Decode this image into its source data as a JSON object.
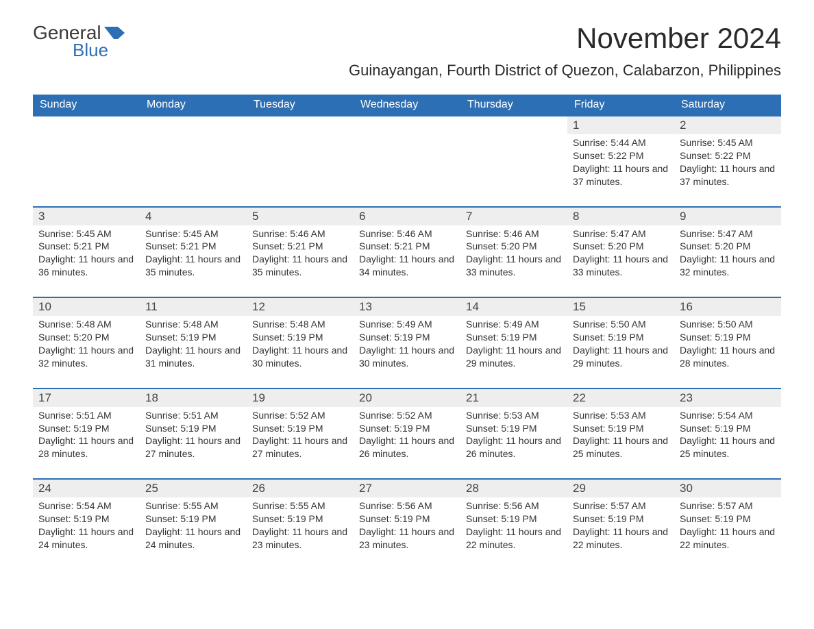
{
  "logo": {
    "text1": "General",
    "text2": "Blue",
    "flag_color": "#2d6fb5"
  },
  "header": {
    "month_title": "November 2024",
    "location": "Guinayangan, Fourth District of Quezon, Calabarzon, Philippines"
  },
  "colors": {
    "header_bg": "#2d6fb5",
    "header_text": "#ffffff",
    "daynum_bg": "#eeeeee",
    "border": "#2d6fb5",
    "text": "#333333",
    "page_bg": "#ffffff"
  },
  "typography": {
    "month_title_fontsize": 42,
    "location_fontsize": 22,
    "dayhead_fontsize": 16,
    "daynum_fontsize": 17,
    "info_fontsize": 14
  },
  "day_names": [
    "Sunday",
    "Monday",
    "Tuesday",
    "Wednesday",
    "Thursday",
    "Friday",
    "Saturday"
  ],
  "labels": {
    "sunrise": "Sunrise: ",
    "sunset": "Sunset: ",
    "daylight": "Daylight: "
  },
  "weeks": [
    [
      null,
      null,
      null,
      null,
      null,
      {
        "d": "1",
        "sr": "5:44 AM",
        "ss": "5:22 PM",
        "dl": "11 hours and 37 minutes."
      },
      {
        "d": "2",
        "sr": "5:45 AM",
        "ss": "5:22 PM",
        "dl": "11 hours and 37 minutes."
      }
    ],
    [
      {
        "d": "3",
        "sr": "5:45 AM",
        "ss": "5:21 PM",
        "dl": "11 hours and 36 minutes."
      },
      {
        "d": "4",
        "sr": "5:45 AM",
        "ss": "5:21 PM",
        "dl": "11 hours and 35 minutes."
      },
      {
        "d": "5",
        "sr": "5:46 AM",
        "ss": "5:21 PM",
        "dl": "11 hours and 35 minutes."
      },
      {
        "d": "6",
        "sr": "5:46 AM",
        "ss": "5:21 PM",
        "dl": "11 hours and 34 minutes."
      },
      {
        "d": "7",
        "sr": "5:46 AM",
        "ss": "5:20 PM",
        "dl": "11 hours and 33 minutes."
      },
      {
        "d": "8",
        "sr": "5:47 AM",
        "ss": "5:20 PM",
        "dl": "11 hours and 33 minutes."
      },
      {
        "d": "9",
        "sr": "5:47 AM",
        "ss": "5:20 PM",
        "dl": "11 hours and 32 minutes."
      }
    ],
    [
      {
        "d": "10",
        "sr": "5:48 AM",
        "ss": "5:20 PM",
        "dl": "11 hours and 32 minutes."
      },
      {
        "d": "11",
        "sr": "5:48 AM",
        "ss": "5:19 PM",
        "dl": "11 hours and 31 minutes."
      },
      {
        "d": "12",
        "sr": "5:48 AM",
        "ss": "5:19 PM",
        "dl": "11 hours and 30 minutes."
      },
      {
        "d": "13",
        "sr": "5:49 AM",
        "ss": "5:19 PM",
        "dl": "11 hours and 30 minutes."
      },
      {
        "d": "14",
        "sr": "5:49 AM",
        "ss": "5:19 PM",
        "dl": "11 hours and 29 minutes."
      },
      {
        "d": "15",
        "sr": "5:50 AM",
        "ss": "5:19 PM",
        "dl": "11 hours and 29 minutes."
      },
      {
        "d": "16",
        "sr": "5:50 AM",
        "ss": "5:19 PM",
        "dl": "11 hours and 28 minutes."
      }
    ],
    [
      {
        "d": "17",
        "sr": "5:51 AM",
        "ss": "5:19 PM",
        "dl": "11 hours and 28 minutes."
      },
      {
        "d": "18",
        "sr": "5:51 AM",
        "ss": "5:19 PM",
        "dl": "11 hours and 27 minutes."
      },
      {
        "d": "19",
        "sr": "5:52 AM",
        "ss": "5:19 PM",
        "dl": "11 hours and 27 minutes."
      },
      {
        "d": "20",
        "sr": "5:52 AM",
        "ss": "5:19 PM",
        "dl": "11 hours and 26 minutes."
      },
      {
        "d": "21",
        "sr": "5:53 AM",
        "ss": "5:19 PM",
        "dl": "11 hours and 26 minutes."
      },
      {
        "d": "22",
        "sr": "5:53 AM",
        "ss": "5:19 PM",
        "dl": "11 hours and 25 minutes."
      },
      {
        "d": "23",
        "sr": "5:54 AM",
        "ss": "5:19 PM",
        "dl": "11 hours and 25 minutes."
      }
    ],
    [
      {
        "d": "24",
        "sr": "5:54 AM",
        "ss": "5:19 PM",
        "dl": "11 hours and 24 minutes."
      },
      {
        "d": "25",
        "sr": "5:55 AM",
        "ss": "5:19 PM",
        "dl": "11 hours and 24 minutes."
      },
      {
        "d": "26",
        "sr": "5:55 AM",
        "ss": "5:19 PM",
        "dl": "11 hours and 23 minutes."
      },
      {
        "d": "27",
        "sr": "5:56 AM",
        "ss": "5:19 PM",
        "dl": "11 hours and 23 minutes."
      },
      {
        "d": "28",
        "sr": "5:56 AM",
        "ss": "5:19 PM",
        "dl": "11 hours and 22 minutes."
      },
      {
        "d": "29",
        "sr": "5:57 AM",
        "ss": "5:19 PM",
        "dl": "11 hours and 22 minutes."
      },
      {
        "d": "30",
        "sr": "5:57 AM",
        "ss": "5:19 PM",
        "dl": "11 hours and 22 minutes."
      }
    ]
  ]
}
